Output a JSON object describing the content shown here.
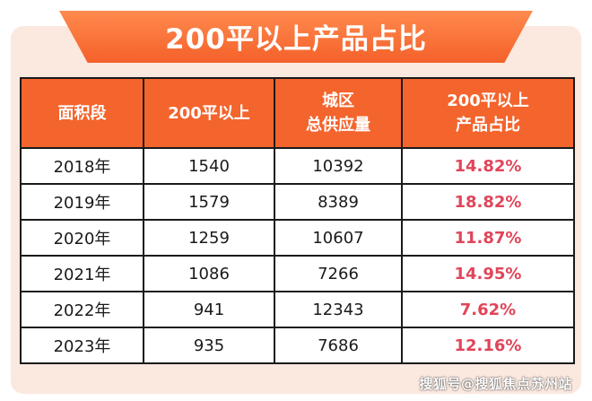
{
  "title": "200平以上产品占比",
  "table": {
    "headers": [
      [
        "面积段"
      ],
      [
        "200平以上"
      ],
      [
        "城区",
        "总供应量"
      ],
      [
        "200平以上",
        "产品占比"
      ]
    ],
    "rows": [
      {
        "year": "2018年",
        "above200": "1540",
        "supply": "10392",
        "share": "14.82%"
      },
      {
        "year": "2019年",
        "above200": "1579",
        "supply": "8389",
        "share": "18.82%"
      },
      {
        "year": "2020年",
        "above200": "1259",
        "supply": "10607",
        "share": "11.87%"
      },
      {
        "year": "2021年",
        "above200": "1086",
        "supply": "7266",
        "share": "14.95%"
      },
      {
        "year": "2022年",
        "above200": "941",
        "supply": "12343",
        "share": "7.62%"
      },
      {
        "year": "2023年",
        "above200": "935",
        "supply": "7686",
        "share": "12.16%"
      }
    ]
  },
  "watermark": "搜狐号@搜狐焦点苏州站",
  "colors": {
    "header_bg": "#f4642d",
    "card_bg": "#fbe8df",
    "share_text": "#e0455a"
  }
}
